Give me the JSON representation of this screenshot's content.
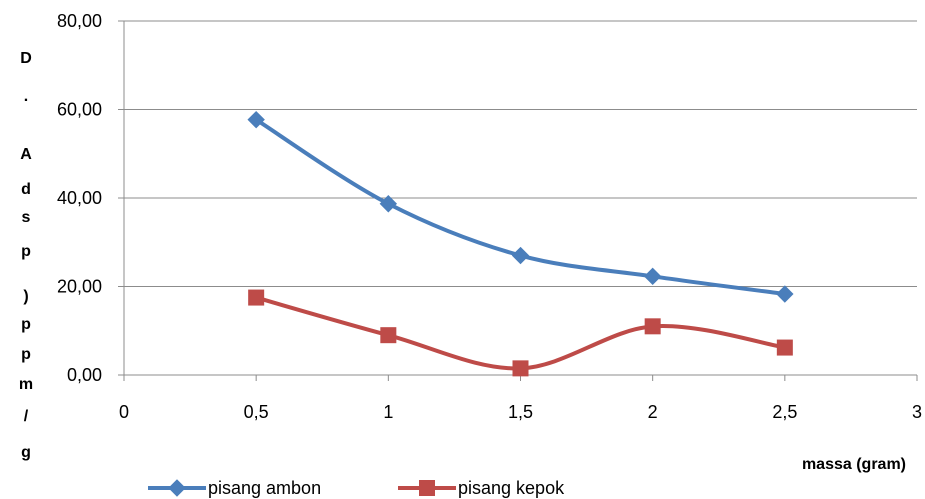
{
  "chart_data": {
    "type": "line",
    "title": "",
    "xlabel": "massa (gram)",
    "ylabel": "D . A d s p ) p p m / g",
    "xlim": [
      0,
      3
    ],
    "ylim": [
      0,
      80
    ],
    "x_ticks": [
      "0",
      "0,5",
      "1",
      "1,5",
      "2",
      "2,5",
      "3"
    ],
    "y_ticks": [
      "0,00",
      "20,00",
      "40,00",
      "60,00",
      "80,00"
    ],
    "grid": "horizontal",
    "legend_position": "bottom",
    "x": [
      0.5,
      1,
      1.5,
      2,
      2.5
    ],
    "series": [
      {
        "name": "pisang ambon",
        "color": "#4a7ebb",
        "marker": "diamond",
        "values": [
          57.7,
          38.7,
          27.0,
          22.3,
          18.3
        ]
      },
      {
        "name": "pisang kepok",
        "color": "#be4b48",
        "marker": "square",
        "values": [
          17.5,
          9.0,
          1.5,
          11.0,
          6.2
        ]
      }
    ]
  }
}
